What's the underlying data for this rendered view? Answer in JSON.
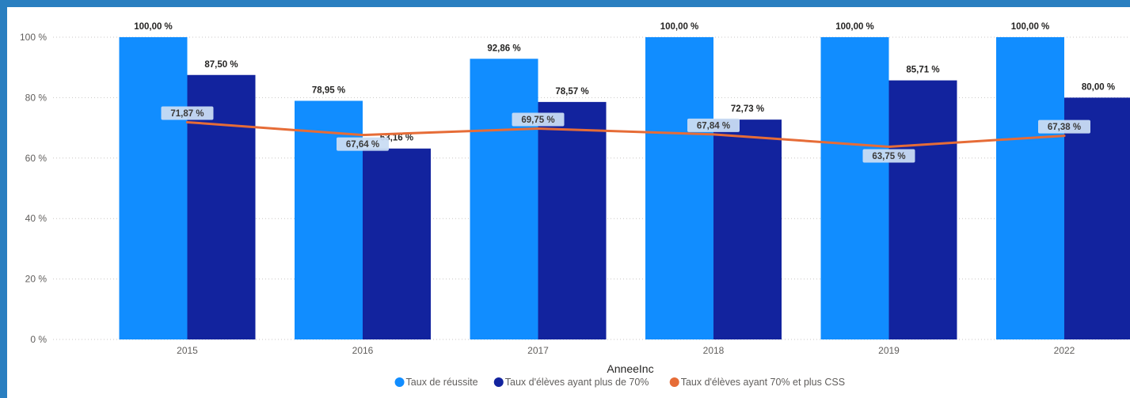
{
  "chart_data": {
    "type": "bar",
    "categories": [
      "2015",
      "2016",
      "2017",
      "2018",
      "2019",
      "2022"
    ],
    "series": [
      {
        "name": "Taux de réussite",
        "kind": "bar",
        "color": "#118dff",
        "values": [
          100.0,
          78.95,
          92.86,
          100.0,
          100.0,
          100.0
        ],
        "labels": [
          "100,00 %",
          "78,95 %",
          "92,86 %",
          "100,00 %",
          "100,00 %",
          "100,00 %"
        ]
      },
      {
        "name": "Taux d'élèves ayant plus de 70%",
        "kind": "bar",
        "color": "#12239e",
        "values": [
          87.5,
          63.16,
          78.57,
          72.73,
          85.71,
          80.0
        ],
        "labels": [
          "87,50 %",
          "63,16 %",
          "78,57 %",
          "72,73 %",
          "85,71 %",
          "80,00 %"
        ]
      },
      {
        "name": "Taux d'élèves ayant 70% et plus CSS",
        "kind": "line",
        "color": "#e66c37",
        "values": [
          71.87,
          67.64,
          69.75,
          67.84,
          63.75,
          67.38
        ],
        "labels": [
          "71,87 %",
          "67,64 %",
          "69,75 %",
          "67,84 %",
          "63,75 %",
          "67,38 %"
        ]
      }
    ],
    "y_ticks": [
      "0 %",
      "20 %",
      "40 %",
      "60 %",
      "80 %",
      "100 %"
    ],
    "ylim": [
      0,
      100
    ],
    "xlabel": "AnneeInc",
    "ylabel": "",
    "grid": true,
    "legend_position": "bottom-center"
  }
}
